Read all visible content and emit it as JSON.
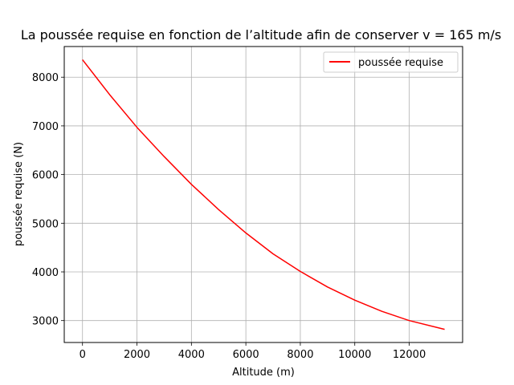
{
  "chart_data": {
    "type": "line",
    "title": "La poussée requise en fonction de l’altitude afin de conserver v = 165 m/s",
    "xlabel": "Altitude (m)",
    "ylabel": "poussée requise (N)",
    "xlim": [
      -670,
      13960
    ],
    "ylim": [
      2550,
      8630
    ],
    "xticks": [
      0,
      2000,
      4000,
      6000,
      8000,
      10000,
      12000
    ],
    "yticks": [
      3000,
      4000,
      5000,
      6000,
      7000,
      8000
    ],
    "grid": true,
    "legend_position": "top-right",
    "series": [
      {
        "name": "poussée requise",
        "color": "#ff0000",
        "x": [
          0,
          1000,
          2000,
          3000,
          4000,
          5000,
          6000,
          7000,
          8000,
          9000,
          10000,
          11000,
          12000,
          13300
        ],
        "y": [
          8360,
          7640,
          6970,
          6370,
          5800,
          5280,
          4800,
          4370,
          4010,
          3690,
          3420,
          3190,
          3000,
          2820
        ]
      }
    ]
  }
}
